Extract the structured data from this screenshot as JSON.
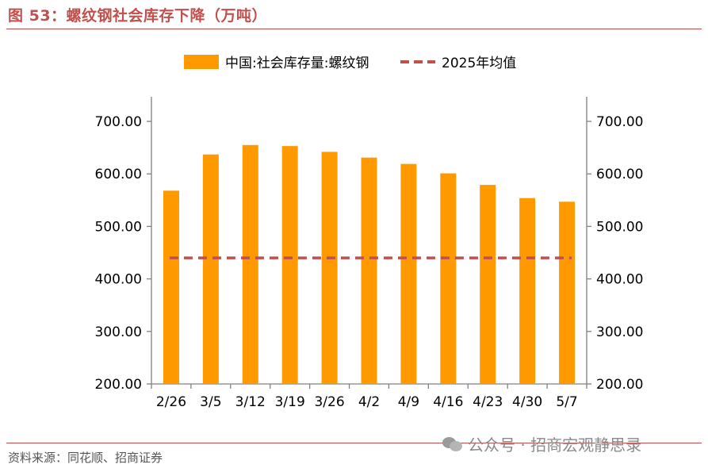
{
  "header": {
    "title": "图 53：螺纹钢社会库存下降（万吨）"
  },
  "footer": {
    "source": "资料来源：同花顺、招商证券",
    "watermark": "公众号 · 招商宏观静思录"
  },
  "colors": {
    "accent": "#c0504d",
    "bar": "#ff9900",
    "avg_line": "#c0504d"
  },
  "chart_data": {
    "type": "bar",
    "categories": [
      "2/26",
      "3/5",
      "3/12",
      "3/19",
      "3/26",
      "4/2",
      "4/9",
      "4/16",
      "4/23",
      "4/30",
      "5/7"
    ],
    "series": [
      {
        "name": "中国:社会库存量:螺纹钢",
        "type": "bar",
        "values": [
          568,
          637,
          655,
          653,
          642,
          631,
          619,
          601,
          579,
          554,
          547
        ]
      },
      {
        "name": "2025年均值",
        "type": "line",
        "style": "dashed",
        "values": [
          440,
          440,
          440,
          440,
          440,
          440,
          440,
          440,
          440,
          440,
          440
        ]
      }
    ],
    "y_ticks": [
      "200.00",
      "300.00",
      "400.00",
      "500.00",
      "600.00",
      "700.00"
    ],
    "ylim": [
      200,
      700
    ],
    "secondary_ylim": [
      200,
      700
    ],
    "legend_position": "top-center",
    "grid": false
  }
}
